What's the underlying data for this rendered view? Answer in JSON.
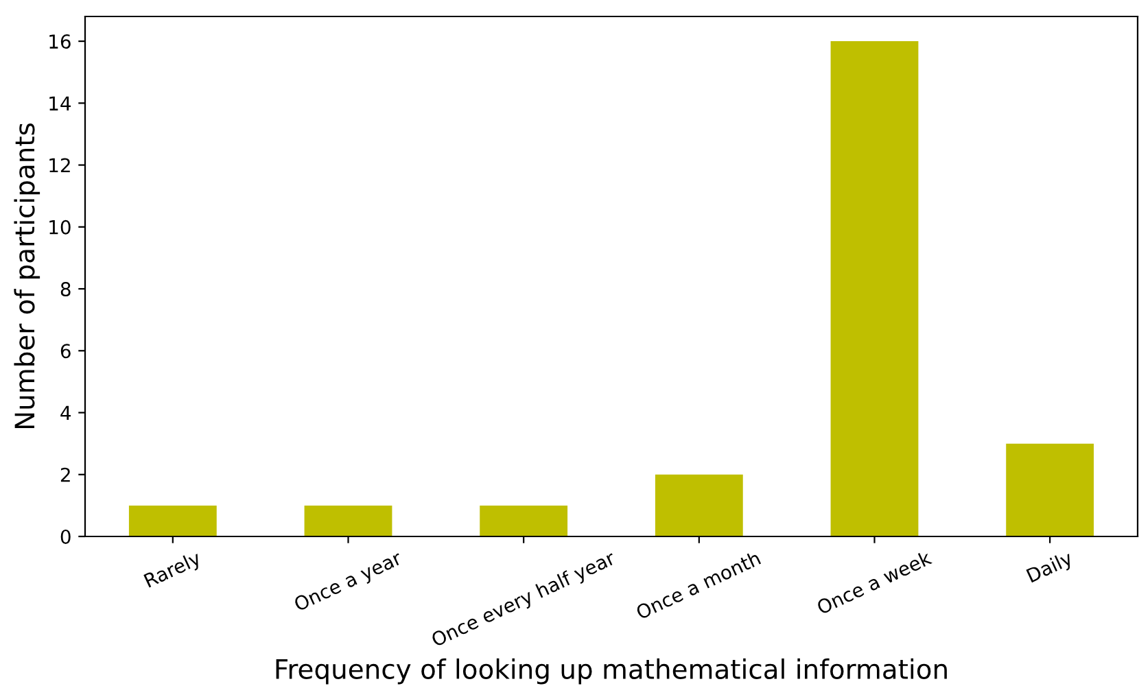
{
  "chart_data": {
    "type": "bar",
    "xlabel": "Frequency of looking up mathematical information",
    "ylabel": "Number of participants",
    "categories": [
      "Rarely",
      "Once a year",
      "Once every half year",
      "Once a month",
      "Once a week",
      "Daily"
    ],
    "values": [
      1,
      1,
      1,
      2,
      16,
      3
    ],
    "color": "#bfbf00",
    "ylim": [
      0,
      16.8
    ],
    "yticks": [
      0,
      2,
      4,
      6,
      8,
      10,
      12,
      14,
      16
    ],
    "grid": false
  }
}
